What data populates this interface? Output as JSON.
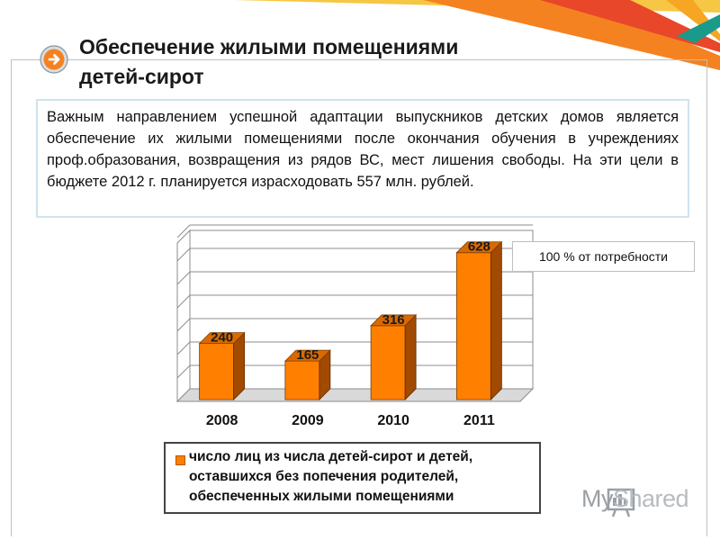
{
  "slide": {
    "title_line1": "Обеспечение жилыми помещениями",
    "title_line2": "детей-сирот",
    "description": "Важным направлением успешной адаптации выпускников детских домов является обеспечение их жилыми помещениями после окончания обучения в учреждениях проф.образования, возвращения из рядов ВС, мест лишения свободы. На эти цели в бюджете 2012 г. планируется израсходовать 557 млн. рублей.",
    "note": "100 % от потребности",
    "legend_line1": "число лиц из числа детей-сирот и детей,",
    "legend_line2": "оставшихся без попечения родителей,",
    "legend_line3": "обеспеченных жилыми помещениями"
  },
  "watermark": {
    "text_my": "My",
    "text_shared": "Shared"
  },
  "colors": {
    "bar_front": "#ff8000",
    "bar_side": "#a14a00",
    "bar_top": "#d96a00",
    "accent_orange": "#f58220",
    "accent_red": "#e8472a",
    "accent_yellow": "#f6c744",
    "accent_teal": "#1a9a8a"
  },
  "chart_data": {
    "type": "bar",
    "categories": [
      "2008",
      "2009",
      "2010",
      "2011"
    ],
    "series": [
      {
        "name": "число лиц из числа детей-сирот и детей, оставшихся без попечения родителей, обеспеченных жилыми помещениями",
        "values": [
          240,
          165,
          316,
          628
        ]
      }
    ],
    "data_labels": [
      "240",
      "165",
      "316",
      "628"
    ],
    "ylim": [
      0,
      700
    ],
    "grid": true,
    "three_d": true,
    "legend_position": "bottom"
  }
}
